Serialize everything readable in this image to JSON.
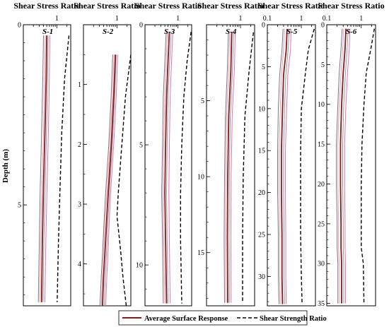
{
  "figure": {
    "ylabel": "Depth (m)",
    "legend": {
      "items": [
        {
          "label": "Average Surface Response",
          "style": "solid",
          "color": "#8b1a1a"
        },
        {
          "label": "Shear Strength Ratio",
          "style": "dashed",
          "color": "#000000"
        }
      ],
      "placement": "bottom-center"
    },
    "colors": {
      "average": "#8b1a1a",
      "strength": "#000000",
      "realizations": [
        "#f070b0",
        "#9a9a9a",
        "#e0a0c0",
        "#7a7a7a",
        "#c85a9a",
        "#b0b0b0"
      ]
    }
  },
  "chart_data": [
    {
      "type": "line",
      "panel": "S-1",
      "title": "Shear Stress Ratio",
      "xscale": "log",
      "xlim": [
        0.1,
        2.6
      ],
      "xticks": [
        {
          "v": 1,
          "label": "1"
        }
      ],
      "yinverted": true,
      "ylim": [
        0,
        7.8
      ],
      "yticks": [
        {
          "v": 0,
          "label": "0"
        },
        {
          "v": 5,
          "label": "5"
        }
      ],
      "depth": [
        0.3,
        1.5,
        3,
        4.5,
        6,
        7.7
      ],
      "series": [
        {
          "name": "Average Surface Response",
          "x": [
            0.5,
            0.48,
            0.44,
            0.4,
            0.37,
            0.35
          ]
        },
        {
          "name": "Shear Strength Ratio",
          "x": [
            2.3,
            1.7,
            1.4,
            1.25,
            1.12,
            1.02
          ]
        }
      ],
      "realizations": [
        {
          "x": [
            0.62,
            0.6,
            0.56,
            0.51,
            0.47,
            0.44
          ]
        },
        {
          "x": [
            0.55,
            0.53,
            0.49,
            0.45,
            0.41,
            0.39
          ]
        },
        {
          "x": [
            0.45,
            0.43,
            0.4,
            0.36,
            0.33,
            0.31
          ]
        },
        {
          "x": [
            0.4,
            0.38,
            0.35,
            0.32,
            0.3,
            0.28
          ]
        }
      ]
    },
    {
      "type": "line",
      "panel": "S-2",
      "title": "Shear Stress Ratio",
      "xscale": "log",
      "xlim": [
        0.1,
        2.6
      ],
      "xticks": [
        {
          "v": 1,
          "label": "1"
        }
      ],
      "yinverted": true,
      "ylim": [
        0,
        4.7
      ],
      "yticks": [
        {
          "v": 1,
          "label": "1"
        },
        {
          "v": 2,
          "label": "2"
        },
        {
          "v": 3,
          "label": "3"
        },
        {
          "v": 4,
          "label": "4"
        }
      ],
      "depth": [
        0.5,
        1.2,
        2,
        2.8,
        3.2,
        3.7,
        4.2,
        4.7
      ],
      "series": [
        {
          "name": "Average Surface Response",
          "x": [
            0.9,
            0.8,
            0.68,
            0.55,
            0.5,
            0.45,
            0.4,
            0.37
          ]
        },
        {
          "name": "Shear Strength Ratio",
          "x": [
            2.6,
            1.8,
            1.4,
            1.1,
            1.0,
            1.25,
            1.5,
            1.9
          ]
        }
      ],
      "realizations": [
        {
          "x": [
            1.05,
            0.95,
            0.8,
            0.65,
            0.6,
            0.55,
            0.5,
            0.46
          ]
        },
        {
          "x": [
            0.95,
            0.86,
            0.73,
            0.6,
            0.55,
            0.5,
            0.45,
            0.42
          ]
        },
        {
          "x": [
            0.82,
            0.73,
            0.62,
            0.5,
            0.45,
            0.41,
            0.37,
            0.34
          ]
        },
        {
          "x": [
            0.75,
            0.67,
            0.57,
            0.46,
            0.42,
            0.38,
            0.34,
            0.31
          ]
        }
      ]
    },
    {
      "type": "line",
      "panel": "S-3",
      "title": "Shear Stress Ratio",
      "xscale": "log",
      "xlim": [
        0.1,
        2.6
      ],
      "xticks": [
        {
          "v": 1,
          "label": "1"
        }
      ],
      "yinverted": true,
      "ylim": [
        0,
        11.7
      ],
      "yticks": [
        {
          "v": 0,
          "label": "0"
        },
        {
          "v": 5,
          "label": "5"
        },
        {
          "v": 10,
          "label": "10"
        }
      ],
      "depth": [
        0.3,
        1.5,
        3,
        5,
        7,
        9,
        11.6
      ],
      "series": [
        {
          "name": "Average Surface Response",
          "x": [
            0.55,
            0.5,
            0.45,
            0.42,
            0.4,
            0.42,
            0.45
          ]
        },
        {
          "name": "Shear Strength Ratio",
          "x": [
            2.5,
            1.9,
            1.5,
            1.3,
            1.2,
            1.2,
            1.3
          ]
        }
      ],
      "realizations": [
        {
          "x": [
            0.7,
            0.64,
            0.58,
            0.55,
            0.53,
            0.55,
            0.58
          ]
        },
        {
          "x": [
            0.62,
            0.56,
            0.5,
            0.47,
            0.45,
            0.47,
            0.5
          ]
        },
        {
          "x": [
            0.48,
            0.44,
            0.4,
            0.37,
            0.35,
            0.37,
            0.4
          ]
        },
        {
          "x": [
            0.44,
            0.4,
            0.36,
            0.34,
            0.32,
            0.34,
            0.36
          ]
        }
      ]
    },
    {
      "type": "line",
      "panel": "S-4",
      "title": "Shear Stress Ratio",
      "xscale": "log",
      "xlim": [
        0.1,
        2.6
      ],
      "xticks": [
        {
          "v": 1,
          "label": "1"
        }
      ],
      "yinverted": true,
      "ylim": [
        0,
        18.5
      ],
      "yticks": [
        {
          "v": 5,
          "label": "5"
        },
        {
          "v": 10,
          "label": "10"
        },
        {
          "v": 15,
          "label": "15"
        }
      ],
      "depth": [
        0.5,
        3,
        6,
        10,
        14,
        18.3
      ],
      "series": [
        {
          "name": "Average Surface Response",
          "x": [
            0.55,
            0.52,
            0.45,
            0.42,
            0.41,
            0.42
          ]
        },
        {
          "name": "Shear Strength Ratio",
          "x": [
            2.4,
            1.8,
            1.35,
            1.2,
            1.15,
            1.15
          ]
        }
      ],
      "realizations": [
        {
          "x": [
            0.7,
            0.66,
            0.57,
            0.53,
            0.52,
            0.53
          ]
        },
        {
          "x": [
            0.62,
            0.58,
            0.5,
            0.47,
            0.46,
            0.47
          ]
        },
        {
          "x": [
            0.48,
            0.45,
            0.39,
            0.37,
            0.36,
            0.37
          ]
        },
        {
          "x": [
            0.44,
            0.41,
            0.36,
            0.34,
            0.33,
            0.34
          ]
        }
      ]
    },
    {
      "type": "line",
      "panel": "S-5",
      "title": "Shear Stress Ratio",
      "xscale": "log",
      "xlim": [
        0.1,
        2.6
      ],
      "xticks": [
        {
          "v": 0.1,
          "label": "0.1"
        },
        {
          "v": 1,
          "label": "1"
        }
      ],
      "yinverted": true,
      "ylim": [
        0,
        33.5
      ],
      "yticks": [
        {
          "v": 0,
          "label": "0"
        },
        {
          "v": 5,
          "label": "5"
        },
        {
          "v": 10,
          "label": "10"
        },
        {
          "v": 15,
          "label": "15"
        },
        {
          "v": 20,
          "label": "20"
        },
        {
          "v": 25,
          "label": "25"
        },
        {
          "v": 30,
          "label": "30"
        }
      ],
      "depth": [
        0.5,
        3,
        6,
        10,
        15,
        20,
        25,
        30,
        33.3
      ],
      "series": [
        {
          "name": "Average Surface Response",
          "x": [
            0.38,
            0.36,
            0.3,
            0.28,
            0.26,
            0.26,
            0.27,
            0.27,
            0.28
          ]
        },
        {
          "name": "Shear Strength Ratio",
          "x": [
            2.4,
            1.6,
            1.3,
            1.0,
            0.95,
            0.95,
            0.95,
            1.0,
            1.05
          ]
        }
      ],
      "realizations": [
        {
          "x": [
            0.5,
            0.48,
            0.4,
            0.37,
            0.34,
            0.34,
            0.35,
            0.35,
            0.36
          ]
        },
        {
          "x": [
            0.44,
            0.41,
            0.35,
            0.32,
            0.3,
            0.3,
            0.31,
            0.31,
            0.32
          ]
        },
        {
          "x": [
            0.32,
            0.3,
            0.26,
            0.24,
            0.22,
            0.22,
            0.23,
            0.23,
            0.24
          ]
        },
        {
          "x": [
            0.29,
            0.27,
            0.23,
            0.21,
            0.2,
            0.2,
            0.21,
            0.21,
            0.22
          ]
        }
      ]
    },
    {
      "type": "line",
      "panel": "S-6",
      "title": "Shear Stress Ratio",
      "xscale": "log",
      "xlim": [
        0.1,
        2.6
      ],
      "xticks": [
        {
          "v": 0.1,
          "label": "0.1"
        },
        {
          "v": 1,
          "label": "1"
        }
      ],
      "yinverted": true,
      "ylim": [
        0,
        35.3
      ],
      "yticks": [
        {
          "v": 0,
          "label": "0"
        },
        {
          "v": 5,
          "label": "5"
        },
        {
          "v": 10,
          "label": "10"
        },
        {
          "v": 15,
          "label": "15"
        },
        {
          "v": 20,
          "label": "20"
        },
        {
          "v": 25,
          "label": "25"
        },
        {
          "v": 30,
          "label": "30"
        },
        {
          "v": 35,
          "label": "35"
        }
      ],
      "depth": [
        0.5,
        3,
        6,
        10,
        15,
        20,
        25,
        28,
        30,
        35
      ],
      "series": [
        {
          "name": "Average Surface Response",
          "x": [
            0.36,
            0.34,
            0.3,
            0.27,
            0.25,
            0.25,
            0.26,
            0.26,
            0.27,
            0.27
          ]
        },
        {
          "name": "Shear Strength Ratio",
          "x": [
            2.4,
            1.9,
            1.4,
            1.2,
            1.05,
            1.0,
            1.0,
            1.0,
            1.15,
            1.2
          ]
        }
      ],
      "realizations": [
        {
          "x": [
            0.47,
            0.45,
            0.4,
            0.36,
            0.33,
            0.33,
            0.34,
            0.34,
            0.35,
            0.35
          ]
        },
        {
          "x": [
            0.42,
            0.39,
            0.35,
            0.31,
            0.29,
            0.29,
            0.3,
            0.3,
            0.31,
            0.31
          ]
        },
        {
          "x": [
            0.31,
            0.29,
            0.26,
            0.23,
            0.21,
            0.21,
            0.22,
            0.22,
            0.23,
            0.23
          ]
        },
        {
          "x": [
            0.28,
            0.26,
            0.23,
            0.21,
            0.19,
            0.19,
            0.2,
            0.2,
            0.21,
            0.21
          ]
        }
      ]
    }
  ]
}
